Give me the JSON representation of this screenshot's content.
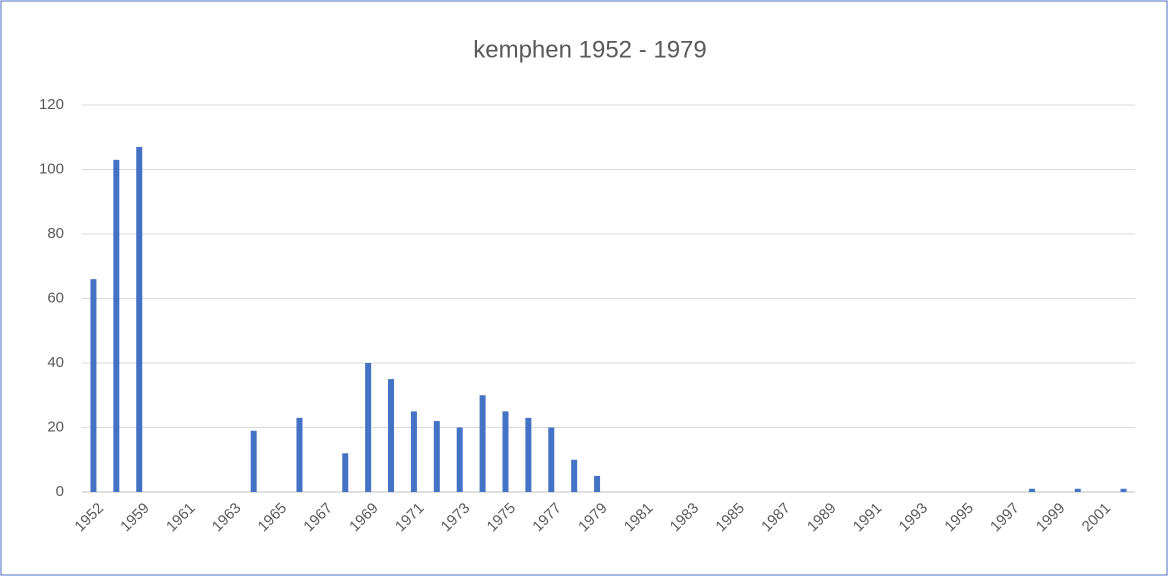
{
  "chart_data": {
    "type": "bar",
    "title": "kemphen 1952 - 1979",
    "categories": [
      "1952",
      null,
      "1959",
      null,
      "1961",
      null,
      "1963",
      null,
      "1965",
      null,
      "1967",
      null,
      "1969",
      null,
      "1971",
      null,
      "1973",
      null,
      "1975",
      null,
      "1977",
      null,
      "1979",
      null,
      "1981",
      null,
      "1983",
      null,
      "1985",
      null,
      "1987",
      null,
      "1989",
      null,
      "1991",
      null,
      "1993",
      null,
      "1995",
      null,
      "1997",
      null,
      "1999",
      null,
      "2001",
      null
    ],
    "values": [
      66,
      103,
      107,
      0,
      0,
      0,
      0,
      19,
      0,
      23,
      0,
      12,
      40,
      35,
      25,
      22,
      20,
      30,
      25,
      23,
      20,
      10,
      5,
      0,
      0,
      0,
      0,
      0,
      0,
      0,
      0,
      0,
      0,
      0,
      0,
      0,
      0,
      0,
      0,
      0,
      0,
      1,
      0,
      1,
      0,
      1
    ],
    "color": "#4472c4",
    "ylim": [
      0,
      120
    ],
    "yticks": [
      0,
      20,
      40,
      60,
      80,
      100,
      120
    ],
    "grid": true
  }
}
